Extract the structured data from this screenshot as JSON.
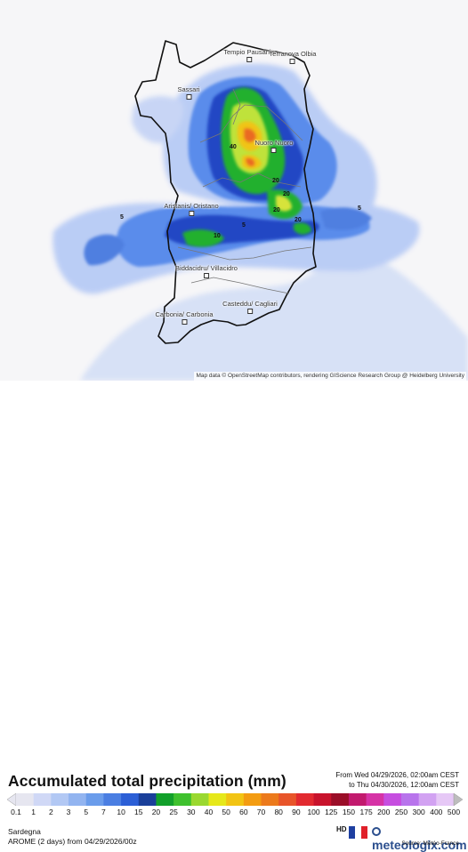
{
  "map": {
    "attribution": "Map data © OpenStreetMap contributors, rendering GIScience Research Group @ Heidelberg University",
    "cities": [
      {
        "id": "tempio",
        "label": "Tempio Pausania"
      },
      {
        "id": "terranova",
        "label": "Terranova Olbia"
      },
      {
        "id": "sassari",
        "label": "Sassari"
      },
      {
        "id": "nuoro",
        "label": "Nuoro Nuoro"
      },
      {
        "id": "aristanis",
        "label": "Aristanis/ Oristano"
      },
      {
        "id": "biddacidru",
        "label": "Biddacidru/ Villacidro"
      },
      {
        "id": "casteddu",
        "label": "Casteddu/ Cagliari"
      },
      {
        "id": "carbonia",
        "label": "Carbonia/ Carbonia"
      }
    ],
    "values": [
      "40",
      "20",
      "20",
      "20",
      "20",
      "10",
      "5",
      "5",
      "5"
    ]
  },
  "footer": {
    "title": "Accumulated total precipitation (mm)",
    "from_line": "From Wed 04/29/2026, 02:00am CEST",
    "to_line": "to Thu 04/30/2026, 12:00am CEST",
    "region": "Sardegna",
    "model": "AROME (2 days) from 04/29/2026/00z",
    "hd": "HD",
    "brand": "meteologix.com",
    "source": "Source: Météo-France"
  },
  "scale": {
    "labels": [
      "0.1",
      "1",
      "2",
      "3",
      "5",
      "7",
      "10",
      "15",
      "20",
      "25",
      "30",
      "40",
      "50",
      "60",
      "70",
      "80",
      "90",
      "100",
      "125",
      "150",
      "175",
      "200",
      "250",
      "300",
      "400",
      "500"
    ],
    "colors": [
      "#e6e6f0",
      "#d0d8f6",
      "#b2c8f4",
      "#92b4f0",
      "#6a9ceb",
      "#4a7ee2",
      "#2c5fd6",
      "#1a3f9a",
      "#12a02a",
      "#3fc12e",
      "#9ad830",
      "#e6e81a",
      "#f2c414",
      "#f39c12",
      "#ec7a1c",
      "#e8552a",
      "#e22a30",
      "#c8132c",
      "#9a0e28",
      "#c21a6e",
      "#d633a6",
      "#c64ee0",
      "#b874ec",
      "#d2a2f2",
      "#e6c8f6",
      "#bdbdbd"
    ]
  }
}
